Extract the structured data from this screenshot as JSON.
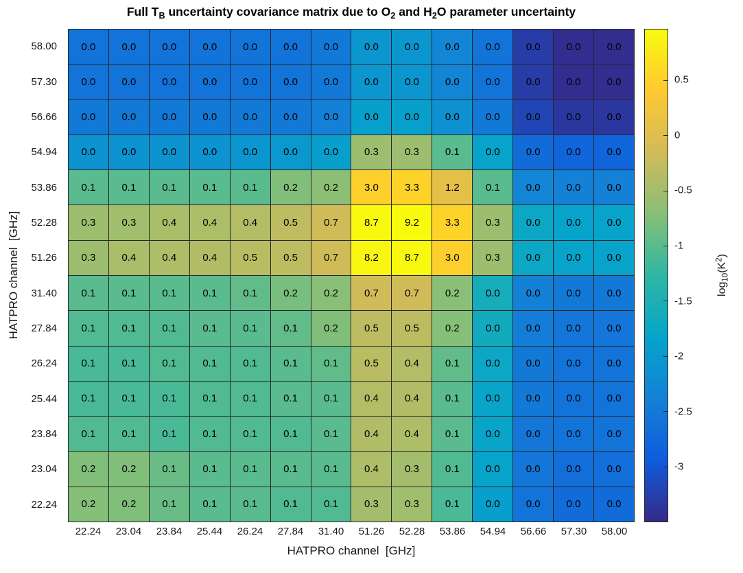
{
  "figure": {
    "background": "#ffffff",
    "text_color": "#1a1a1a",
    "grid_line_color": "#26262a"
  },
  "chart_data": {
    "type": "heatmap",
    "title_segments": [
      {
        "t": "Full T"
      },
      {
        "t": "B",
        "sub": true
      },
      {
        "t": " uncertainty covariance matrix due to O"
      },
      {
        "t": "2",
        "sub": true
      },
      {
        "t": " and H"
      },
      {
        "t": "2",
        "sub": true
      },
      {
        "t": "O parameter uncertainty"
      }
    ],
    "xlabel": "HATPRO channel  [GHz]",
    "ylabel": "HATPRO channel  [GHz]",
    "x_categories": [
      "22.24",
      "23.04",
      "23.84",
      "25.44",
      "26.24",
      "27.84",
      "31.40",
      "51.26",
      "52.28",
      "53.86",
      "54.94",
      "56.66",
      "57.30",
      "58.00"
    ],
    "y_categories": [
      "58.00",
      "57.30",
      "56.66",
      "54.94",
      "53.86",
      "52.28",
      "51.26",
      "31.40",
      "27.84",
      "26.24",
      "25.44",
      "23.84",
      "23.04",
      "22.24"
    ],
    "cell_labels": [
      [
        "0.0",
        "0.0",
        "0.0",
        "0.0",
        "0.0",
        "0.0",
        "0.0",
        "0.0",
        "0.0",
        "0.0",
        "0.0",
        "0.0",
        "0.0",
        "0.0"
      ],
      [
        "0.0",
        "0.0",
        "0.0",
        "0.0",
        "0.0",
        "0.0",
        "0.0",
        "0.0",
        "0.0",
        "0.0",
        "0.0",
        "0.0",
        "0.0",
        "0.0"
      ],
      [
        "0.0",
        "0.0",
        "0.0",
        "0.0",
        "0.0",
        "0.0",
        "0.0",
        "0.0",
        "0.0",
        "0.0",
        "0.0",
        "0.0",
        "0.0",
        "0.0"
      ],
      [
        "0.0",
        "0.0",
        "0.0",
        "0.0",
        "0.0",
        "0.0",
        "0.0",
        "0.3",
        "0.3",
        "0.1",
        "0.0",
        "0.0",
        "0.0",
        "0.0"
      ],
      [
        "0.1",
        "0.1",
        "0.1",
        "0.1",
        "0.1",
        "0.2",
        "0.2",
        "3.0",
        "3.3",
        "1.2",
        "0.1",
        "0.0",
        "0.0",
        "0.0"
      ],
      [
        "0.3",
        "0.3",
        "0.4",
        "0.4",
        "0.4",
        "0.5",
        "0.7",
        "8.7",
        "9.2",
        "3.3",
        "0.3",
        "0.0",
        "0.0",
        "0.0"
      ],
      [
        "0.3",
        "0.4",
        "0.4",
        "0.4",
        "0.5",
        "0.5",
        "0.7",
        "8.2",
        "8.7",
        "3.0",
        "0.3",
        "0.0",
        "0.0",
        "0.0"
      ],
      [
        "0.1",
        "0.1",
        "0.1",
        "0.1",
        "0.1",
        "0.2",
        "0.2",
        "0.7",
        "0.7",
        "0.2",
        "0.0",
        "0.0",
        "0.0",
        "0.0"
      ],
      [
        "0.1",
        "0.1",
        "0.1",
        "0.1",
        "0.1",
        "0.1",
        "0.2",
        "0.5",
        "0.5",
        "0.2",
        "0.0",
        "0.0",
        "0.0",
        "0.0"
      ],
      [
        "0.1",
        "0.1",
        "0.1",
        "0.1",
        "0.1",
        "0.1",
        "0.1",
        "0.5",
        "0.4",
        "0.1",
        "0.0",
        "0.0",
        "0.0",
        "0.0"
      ],
      [
        "0.1",
        "0.1",
        "0.1",
        "0.1",
        "0.1",
        "0.1",
        "0.1",
        "0.4",
        "0.4",
        "0.1",
        "0.0",
        "0.0",
        "0.0",
        "0.0"
      ],
      [
        "0.1",
        "0.1",
        "0.1",
        "0.1",
        "0.1",
        "0.1",
        "0.1",
        "0.4",
        "0.4",
        "0.1",
        "0.0",
        "0.0",
        "0.0",
        "0.0"
      ],
      [
        "0.2",
        "0.2",
        "0.1",
        "0.1",
        "0.1",
        "0.1",
        "0.1",
        "0.4",
        "0.3",
        "0.1",
        "0.0",
        "0.0",
        "0.0",
        "0.0"
      ],
      [
        "0.2",
        "0.2",
        "0.1",
        "0.1",
        "0.1",
        "0.1",
        "0.1",
        "0.3",
        "0.3",
        "0.1",
        "0.0",
        "0.0",
        "0.0",
        "0.0"
      ]
    ],
    "cell_log10_values": [
      [
        -2.6,
        -2.6,
        -2.6,
        -2.6,
        -2.6,
        -2.6,
        -2.5,
        -2.05,
        -2.05,
        -2.3,
        -2.6,
        -3.3,
        -3.45,
        -3.45
      ],
      [
        -2.6,
        -2.6,
        -2.6,
        -2.6,
        -2.6,
        -2.6,
        -2.5,
        -2.05,
        -2.05,
        -2.3,
        -2.6,
        -3.3,
        -3.45,
        -3.45
      ],
      [
        -2.5,
        -2.5,
        -2.5,
        -2.5,
        -2.5,
        -2.5,
        -2.4,
        -1.9,
        -1.9,
        -2.15,
        -2.5,
        -3.2,
        -3.35,
        -3.35
      ],
      [
        -2.1,
        -2.1,
        -2.1,
        -2.1,
        -2.05,
        -2.0,
        -1.9,
        -0.55,
        -0.55,
        -1.0,
        -1.85,
        -2.7,
        -2.8,
        -2.8
      ],
      [
        -1.0,
        -1.0,
        -1.0,
        -1.0,
        -1.0,
        -0.75,
        -0.68,
        0.48,
        0.52,
        0.08,
        -1.0,
        -2.3,
        -2.4,
        -2.4
      ],
      [
        -0.55,
        -0.52,
        -0.45,
        -0.42,
        -0.38,
        -0.3,
        -0.16,
        0.94,
        0.96,
        0.52,
        -0.55,
        -1.75,
        -1.85,
        -1.85
      ],
      [
        -0.55,
        -0.45,
        -0.42,
        -0.4,
        -0.33,
        -0.3,
        -0.16,
        0.91,
        0.94,
        0.48,
        -0.55,
        -1.75,
        -1.85,
        -1.85
      ],
      [
        -1.0,
        -1.0,
        -1.0,
        -1.0,
        -0.95,
        -0.8,
        -0.7,
        -0.16,
        -0.16,
        -0.7,
        -1.6,
        -2.4,
        -2.5,
        -2.5
      ],
      [
        -1.05,
        -1.05,
        -1.05,
        -1.0,
        -1.0,
        -0.95,
        -0.75,
        -0.3,
        -0.3,
        -0.72,
        -1.65,
        -2.45,
        -2.55,
        -2.55
      ],
      [
        -1.1,
        -1.1,
        -1.05,
        -1.05,
        -1.05,
        -1.0,
        -0.95,
        -0.33,
        -0.38,
        -0.95,
        -1.75,
        -2.5,
        -2.6,
        -2.6
      ],
      [
        -1.1,
        -1.1,
        -1.1,
        -1.05,
        -1.05,
        -1.0,
        -1.0,
        -0.38,
        -0.4,
        -1.0,
        -1.8,
        -2.5,
        -2.6,
        -2.6
      ],
      [
        -1.05,
        -1.05,
        -1.1,
        -1.05,
        -1.05,
        -1.05,
        -1.0,
        -0.4,
        -0.42,
        -1.0,
        -1.8,
        -2.55,
        -2.6,
        -2.6
      ],
      [
        -0.75,
        -0.75,
        -0.9,
        -1.0,
        -1.0,
        -1.0,
        -1.0,
        -0.42,
        -0.5,
        -1.05,
        -1.85,
        -2.55,
        -2.65,
        -2.65
      ],
      [
        -0.72,
        -0.75,
        -0.9,
        -1.0,
        -1.0,
        -1.05,
        -1.05,
        -0.5,
        -0.52,
        -1.1,
        -1.9,
        -2.6,
        -2.7,
        -2.7
      ]
    ],
    "colorbar": {
      "label_segments": [
        {
          "t": "log"
        },
        {
          "t": "10",
          "sub": true
        },
        {
          "t": "(K"
        },
        {
          "t": "2",
          "sup": true
        },
        {
          "t": ")"
        }
      ],
      "tick_labels": [
        "0.5",
        "0",
        "-0.5",
        "-1",
        "-1.5",
        "-2",
        "-2.5",
        "-3"
      ],
      "tick_values": [
        0.5,
        0,
        -0.5,
        -1,
        -1.5,
        -2,
        -2.5,
        -3
      ],
      "vmin": -3.5,
      "vmax": 0.96,
      "colormap": "parula",
      "colormap_anchors": [
        "#352a87",
        "#0f5cdd",
        "#1481d6",
        "#06a4ca",
        "#2eb7a4",
        "#87bf77",
        "#d1bb59",
        "#fec832",
        "#f9fb0e"
      ]
    }
  }
}
